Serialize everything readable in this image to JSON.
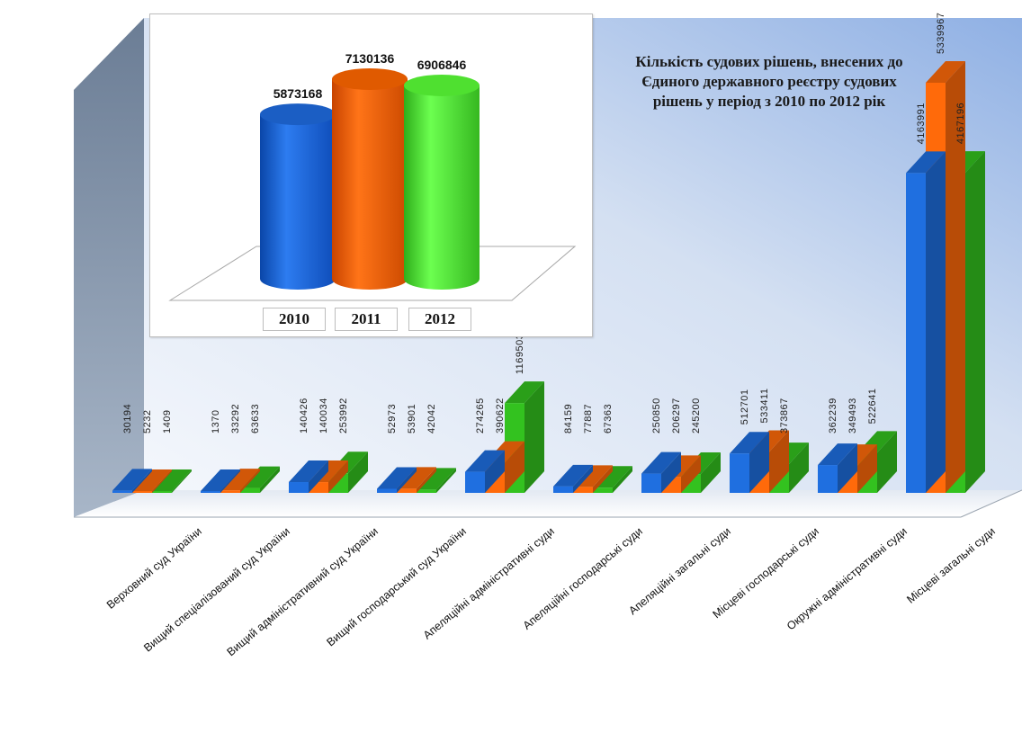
{
  "chart_data": [
    {
      "type": "bar",
      "title": "Кількість судових рішень, внесених до Єдиного державного реєстру судових рішень у період з 2010 по 2012 рік",
      "categories": [
        "Верховний суд України",
        "Вищий спеціалізований суд України",
        "Вищий адміністративний суд України",
        "Вищий господарський суд України",
        "Апеляційні адміністративні суди",
        "Апеляційні господарські суди",
        "Апеляційні загальні суди",
        "Місцеві господарські суди",
        "Окружні адміністративні суди",
        "Місцеві загальні суди"
      ],
      "series": [
        {
          "values": [
            30194,
            1370,
            140426,
            52973,
            274265,
            84159,
            250850,
            512701,
            362239,
            4163991
          ],
          "color": "#1f6fe0"
        },
        {
          "values": [
            5232,
            33292,
            140034,
            53901,
            390622,
            77887,
            206297,
            533411,
            349493,
            5339967
          ],
          "color": "#ff6a0a"
        },
        {
          "values": [
            1409,
            63633,
            253992,
            42042,
            1169503,
            67363,
            245200,
            373867,
            522641,
            4167196
          ],
          "color": "#33c21f"
        }
      ],
      "ylim": [
        0,
        5339967
      ],
      "legend": "none",
      "grid": false
    },
    {
      "type": "bar",
      "categories": [
        "2010",
        "2011",
        "2012"
      ],
      "values": [
        5873168,
        7130136,
        6906846
      ],
      "colors": [
        "#1f6fe0",
        "#ff6a0a",
        "#33c21f"
      ]
    }
  ]
}
